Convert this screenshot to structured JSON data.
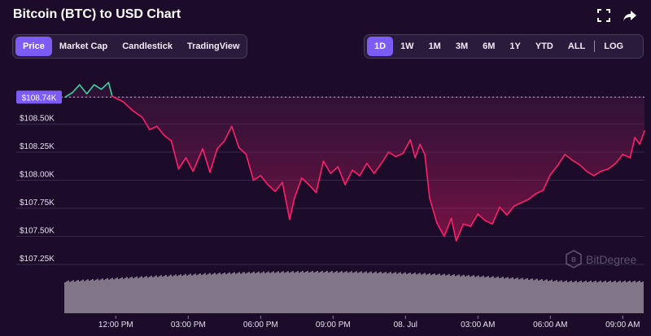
{
  "header": {
    "title": "Bitcoin (BTC) to USD Chart",
    "fullscreen_icon": "fullscreen-icon",
    "share_icon": "share-icon"
  },
  "view_tabs": [
    {
      "label": "Price",
      "active": true
    },
    {
      "label": "Market Cap",
      "active": false
    },
    {
      "label": "Candlestick",
      "active": false
    },
    {
      "label": "TradingView",
      "active": false
    }
  ],
  "range_tabs": [
    {
      "label": "1D",
      "active": true
    },
    {
      "label": "1W",
      "active": false
    },
    {
      "label": "1M",
      "active": false
    },
    {
      "label": "3M",
      "active": false
    },
    {
      "label": "6M",
      "active": false
    },
    {
      "label": "1Y",
      "active": false
    },
    {
      "label": "YTD",
      "active": false
    },
    {
      "label": "ALL",
      "active": false
    }
  ],
  "log_label": "LOG",
  "watermark": "BitDegree",
  "colors": {
    "background": "#1c0c2a",
    "line_down": "#ff1f6b",
    "line_up": "#3fd3a0",
    "accent": "#7b5cf5",
    "volume": "#ffffff",
    "grid": "#3a2a4c"
  },
  "chart_data": {
    "type": "line",
    "y_ticks": [
      "$108.50K",
      "$108.25K",
      "$108.00K",
      "$107.75K",
      "$107.50K",
      "$107.25K"
    ],
    "y_values": [
      108500,
      108250,
      108000,
      107750,
      107500,
      107250
    ],
    "current_label": "$108.74K",
    "current_value": 108740,
    "ylim": [
      107250,
      108750
    ],
    "x_ticks": [
      "12:00 PM",
      "03:00 PM",
      "06:00 PM",
      "09:00 PM",
      "08. Jul",
      "03:00 AM",
      "06:00 AM",
      "09:00 AM"
    ],
    "x_tick_hours": [
      2.1,
      5.1,
      8.1,
      11.1,
      14.1,
      17.1,
      20.1,
      23.1
    ],
    "series": [
      {
        "values": [
          [
            0,
            108740
          ],
          [
            0.3,
            108780
          ],
          [
            0.6,
            108850
          ],
          [
            0.9,
            108770
          ],
          [
            1.2,
            108850
          ],
          [
            1.5,
            108810
          ],
          [
            1.8,
            108870
          ],
          [
            1.95,
            108750
          ],
          [
            2.1,
            108730
          ],
          [
            2.4,
            108700
          ],
          [
            2.8,
            108620
          ],
          [
            3.2,
            108560
          ],
          [
            3.5,
            108450
          ],
          [
            3.8,
            108480
          ],
          [
            4.1,
            108400
          ],
          [
            4.4,
            108350
          ],
          [
            4.7,
            108100
          ],
          [
            5.0,
            108200
          ],
          [
            5.3,
            108080
          ],
          [
            5.7,
            108280
          ],
          [
            6.0,
            108070
          ],
          [
            6.3,
            108280
          ],
          [
            6.6,
            108350
          ],
          [
            6.9,
            108480
          ],
          [
            7.2,
            108290
          ],
          [
            7.5,
            108230
          ],
          [
            7.8,
            108000
          ],
          [
            8.1,
            108040
          ],
          [
            8.4,
            107960
          ],
          [
            8.7,
            107900
          ],
          [
            9.0,
            107980
          ],
          [
            9.3,
            107650
          ],
          [
            9.5,
            107840
          ],
          [
            9.8,
            108020
          ],
          [
            10.1,
            107960
          ],
          [
            10.4,
            107890
          ],
          [
            10.7,
            108170
          ],
          [
            11.0,
            108060
          ],
          [
            11.3,
            108120
          ],
          [
            11.6,
            107960
          ],
          [
            11.9,
            108090
          ],
          [
            12.2,
            108040
          ],
          [
            12.5,
            108150
          ],
          [
            12.8,
            108060
          ],
          [
            13.1,
            108150
          ],
          [
            13.4,
            108250
          ],
          [
            13.7,
            108210
          ],
          [
            14.0,
            108240
          ],
          [
            14.3,
            108360
          ],
          [
            14.5,
            108200
          ],
          [
            14.7,
            108320
          ],
          [
            14.9,
            108230
          ],
          [
            15.1,
            107840
          ],
          [
            15.4,
            107620
          ],
          [
            15.7,
            107500
          ],
          [
            16.0,
            107660
          ],
          [
            16.2,
            107460
          ],
          [
            16.5,
            107610
          ],
          [
            16.8,
            107590
          ],
          [
            17.1,
            107700
          ],
          [
            17.4,
            107640
          ],
          [
            17.7,
            107610
          ],
          [
            18.0,
            107760
          ],
          [
            18.3,
            107690
          ],
          [
            18.6,
            107770
          ],
          [
            18.9,
            107800
          ],
          [
            19.2,
            107830
          ],
          [
            19.5,
            107880
          ],
          [
            19.8,
            107910
          ],
          [
            20.1,
            108050
          ],
          [
            20.4,
            108130
          ],
          [
            20.7,
            108230
          ],
          [
            21.0,
            108180
          ],
          [
            21.3,
            108140
          ],
          [
            21.6,
            108080
          ],
          [
            21.9,
            108040
          ],
          [
            22.2,
            108080
          ],
          [
            22.5,
            108100
          ],
          [
            22.8,
            108150
          ],
          [
            23.1,
            108230
          ],
          [
            23.4,
            108200
          ],
          [
            23.6,
            108380
          ],
          [
            23.8,
            108320
          ],
          [
            24.0,
            108440
          ]
        ]
      }
    ],
    "volume_note": "volume bars shown beneath price line",
    "grid": true
  }
}
